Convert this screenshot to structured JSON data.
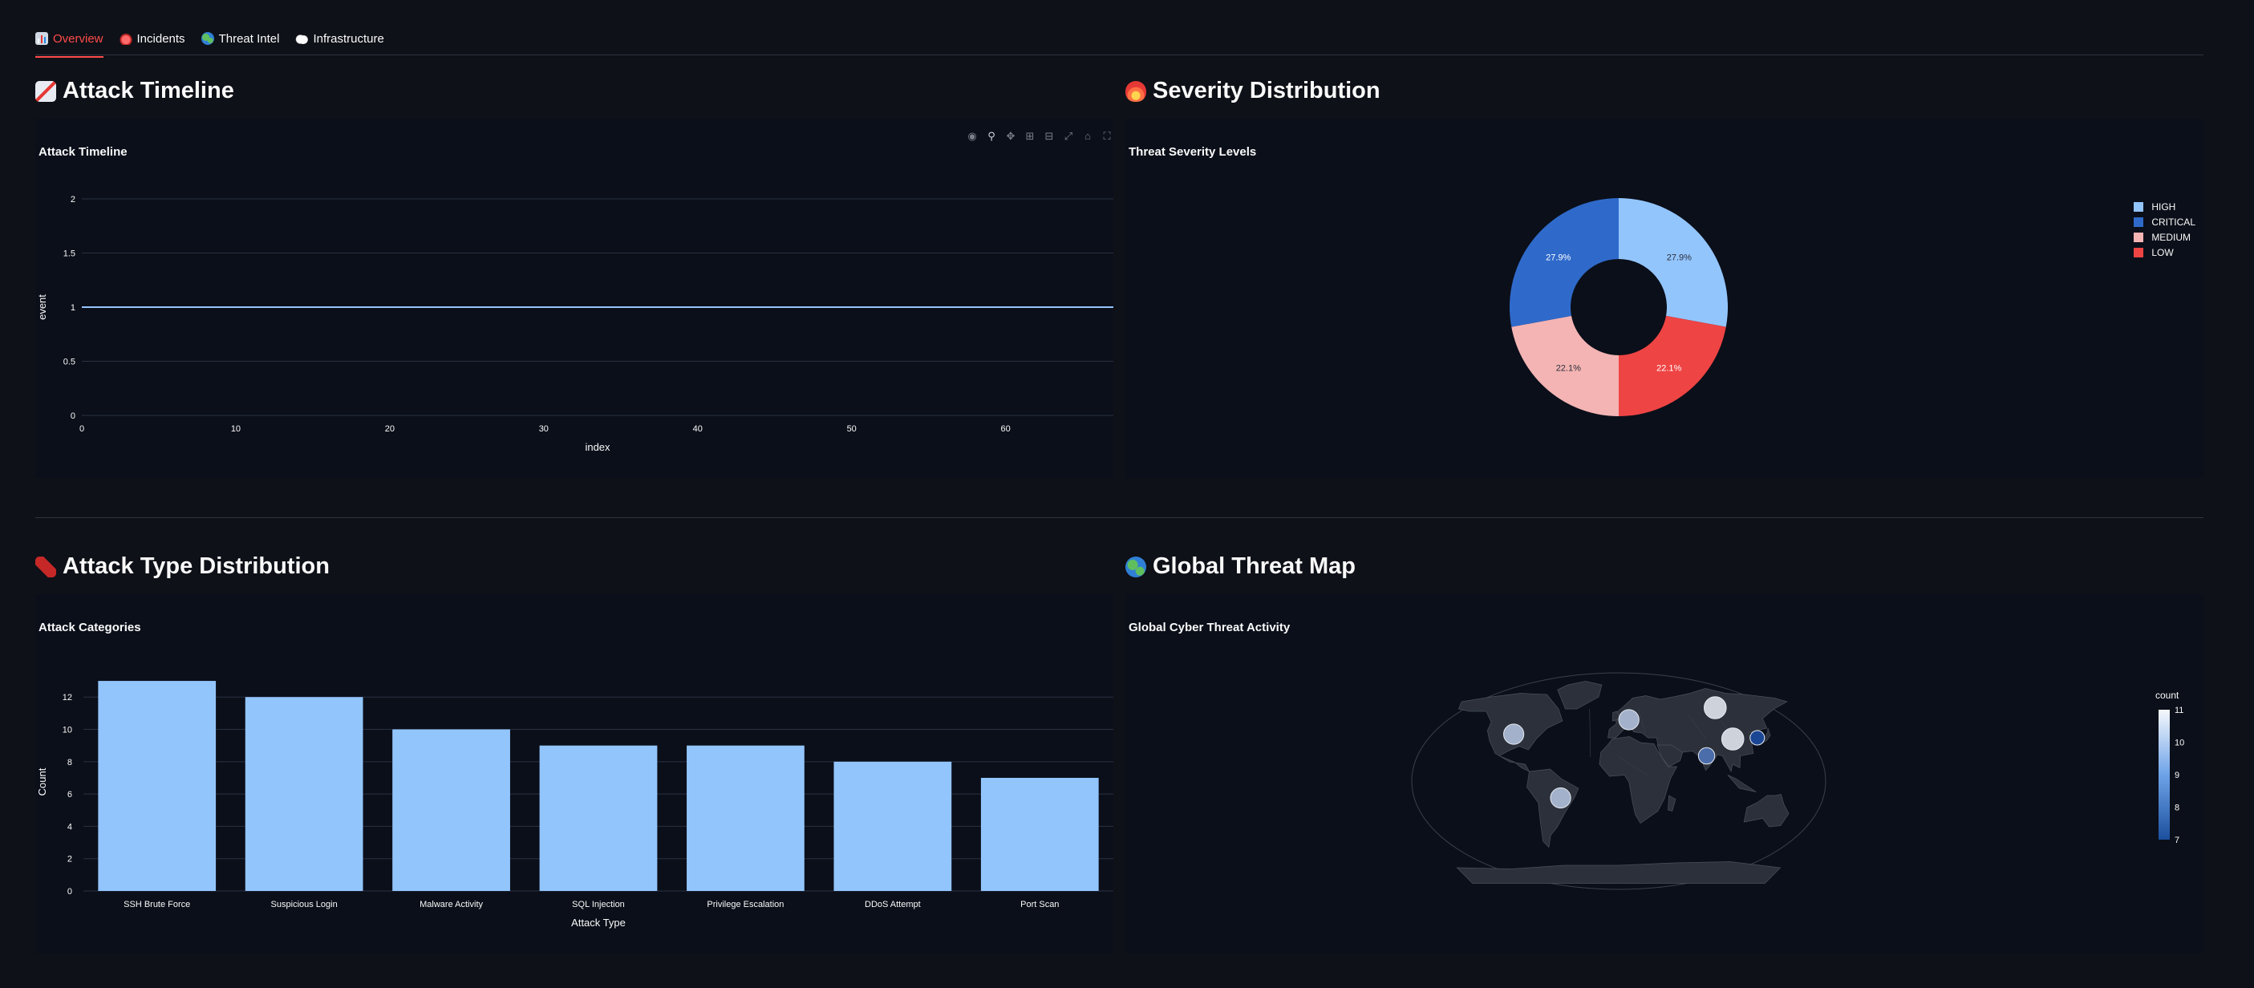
{
  "tabs": [
    {
      "label": "Overview",
      "icon": "bar-chart-icon",
      "active": true
    },
    {
      "label": "Incidents",
      "icon": "siren-icon",
      "active": false
    },
    {
      "label": "Threat Intel",
      "icon": "globe-icon",
      "active": false
    },
    {
      "label": "Infrastructure",
      "icon": "cloud-icon",
      "active": false
    }
  ],
  "sections": {
    "timeline": {
      "heading": "Attack Timeline",
      "icon": "chart-increasing-icon"
    },
    "severity": {
      "heading": "Severity Distribution",
      "icon": "fire-icon"
    },
    "attack_type": {
      "heading": "Attack Type Distribution",
      "icon": "firecracker-icon"
    },
    "map": {
      "heading": "Global Threat Map",
      "icon": "globe-icon"
    }
  },
  "modebar_icons": [
    "camera-icon",
    "zoom-icon",
    "pan-icon",
    "zoom-in-icon",
    "zoom-out-icon",
    "autoscale-icon",
    "reset-home-icon",
    "fullscreen-icon"
  ],
  "colors": {
    "background": "#0e1117",
    "panel": "#0b0f19",
    "accent": "#ff4b4b",
    "bar": "#93c5fd",
    "line": "#93c5fd"
  },
  "chart_data": [
    {
      "id": "timeline",
      "type": "line",
      "title": "Attack Timeline",
      "xlabel": "index",
      "ylabel": "event",
      "xlim": [
        0,
        67
      ],
      "ylim": [
        0,
        2
      ],
      "xticks": [
        "0",
        "10",
        "20",
        "30",
        "40",
        "50",
        "60"
      ],
      "yticks": [
        "0",
        "0.5",
        "1",
        "1.5",
        "2"
      ],
      "x": [
        0,
        67
      ],
      "values": [
        1,
        1
      ],
      "grid": true
    },
    {
      "id": "severity",
      "type": "pie",
      "title": "Threat Severity Levels",
      "hole": true,
      "labels": [
        "HIGH",
        "LOW",
        "MEDIUM",
        "CRITICAL"
      ],
      "values": [
        27.9,
        22.1,
        22.1,
        27.9
      ],
      "display": [
        "27.9%",
        "22.1%",
        "22.1%",
        "27.9%"
      ],
      "colors": [
        "#93c5fd",
        "#ef4444",
        "#f4b4b4",
        "#2f6acb"
      ],
      "legend": [
        {
          "label": "HIGH",
          "color": "#93c5fd"
        },
        {
          "label": "CRITICAL",
          "color": "#2f6acb"
        },
        {
          "label": "MEDIUM",
          "color": "#f4b4b4"
        },
        {
          "label": "LOW",
          "color": "#ef4444"
        }
      ],
      "legend_position": "right"
    },
    {
      "id": "attack_type",
      "type": "bar",
      "title": "Attack Categories",
      "xlabel": "Attack Type",
      "ylabel": "Count",
      "categories": [
        "SSH Brute Force",
        "Suspicious Login",
        "Malware Activity",
        "SQL Injection",
        "Privilege Escalation",
        "DDoS Attempt",
        "Port Scan"
      ],
      "values": [
        13,
        12,
        10,
        9,
        9,
        8,
        7
      ],
      "ylim": [
        0,
        13.5
      ],
      "yticks": [
        "0",
        "2",
        "4",
        "6",
        "8",
        "10",
        "12"
      ],
      "grid": true
    },
    {
      "id": "map",
      "type": "scatter",
      "title": "Global Cyber Threat Activity",
      "projection": "natural earth",
      "colorbar_title": "count",
      "colorbar_range": [
        7,
        11
      ],
      "colorbar_ticks": [
        "11",
        "10",
        "9",
        "8",
        "7"
      ],
      "points": [
        {
          "lon": -98,
          "lat": 39,
          "count": 10
        },
        {
          "lon": -51,
          "lat": -14,
          "count": 10
        },
        {
          "lon": 10,
          "lat": 51,
          "count": 10
        },
        {
          "lon": 78,
          "lat": 21,
          "count": 8
        },
        {
          "lon": 100,
          "lat": 61,
          "count": 11
        },
        {
          "lon": 105,
          "lat": 35,
          "count": 11
        },
        {
          "lon": 128,
          "lat": 36,
          "count": 7
        }
      ]
    }
  ]
}
